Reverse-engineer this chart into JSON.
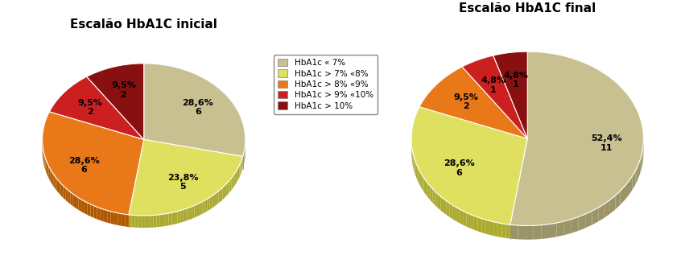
{
  "title_left": "Escalão HbA1C inicial",
  "title_right": "Escalão HbA1C final",
  "categories": [
    "HbA1c « 7%",
    "HbA1c > 7% «8%",
    "HbA1c > 8% «9%",
    "HbA1c > 9% «10%",
    "HbA1c > 10%"
  ],
  "colors": [
    "#C8C090",
    "#E0E060",
    "#E87818",
    "#CC2020",
    "#881010"
  ],
  "shadow_colors": [
    "#9A9468",
    "#AAAA30",
    "#B05800",
    "#901010",
    "#600808"
  ],
  "left_values": [
    6,
    5,
    6,
    2,
    2
  ],
  "left_pcts": [
    "28,6%",
    "23,8%",
    "28,6%",
    "9,5%",
    "9,5%"
  ],
  "left_counts": [
    "6",
    "5",
    "6",
    "2",
    "2"
  ],
  "right_values": [
    11,
    6,
    2,
    1,
    1
  ],
  "right_pcts": [
    "52,4%",
    "28,6%",
    "9,5%",
    "4,8%",
    "4,8%"
  ],
  "right_counts": [
    "11",
    "6",
    "2",
    "1",
    "1"
  ],
  "startangle": 90,
  "depth": 0.12,
  "yscale": 0.75,
  "background_color": "#FFFFFF"
}
